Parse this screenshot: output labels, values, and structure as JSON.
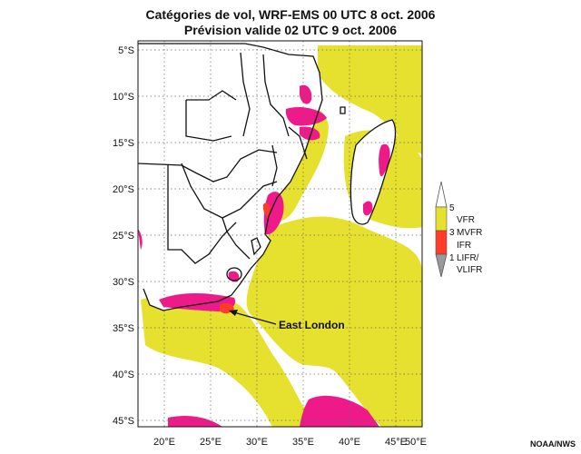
{
  "title_line1": "Catégories de vol, WRF-EMS 00 UTC 8 oct. 2006",
  "title_line2": "Prévision valide 02 UTC 9 oct. 2006",
  "lat_labels": [
    "5°S",
    "10°S",
    "15°S",
    "20°S",
    "25°S",
    "30°S",
    "35°S",
    "40°S",
    "45°S"
  ],
  "lon_labels": [
    "20°E",
    "25°E",
    "30°E",
    "35°E",
    "40°E",
    "45°E",
    "50°E"
  ],
  "legend": {
    "levels": [
      "5",
      "3",
      "1"
    ],
    "categories": [
      "VFR",
      "MVFR",
      "IFR",
      "LIFR/",
      "VLIFR"
    ],
    "colors": {
      "vfr": "#e6e02e",
      "mvfr": "#ee1a8a",
      "ifr": "#ff3b2a",
      "lifr": "#9a9a9a"
    }
  },
  "annotation": "East London",
  "credit": "NOAA/NWS"
}
